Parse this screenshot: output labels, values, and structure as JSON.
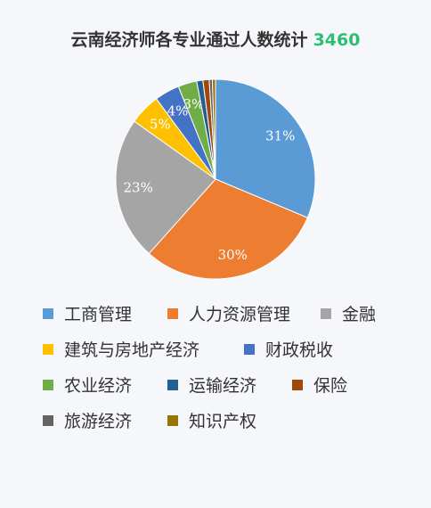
{
  "chart": {
    "title": "云南经济师各专业通过人数统计",
    "total": "3460"
  },
  "chart_data": {
    "type": "pie",
    "title": "云南经济师各专业通过人数统计 3460",
    "legend": "bottom",
    "categories": [
      "工商管理",
      "人力资源管理",
      "金融",
      "建筑与房地产经济",
      "财政税收",
      "农业经济",
      "运输经济",
      "保险",
      "旅游经济",
      "知识产权"
    ],
    "values": [
      31,
      30,
      23,
      5,
      4,
      3,
      1,
      1,
      0.5,
      0.5
    ],
    "labels": [
      "31%",
      "30%",
      "23%",
      "5%",
      "4%",
      "3%",
      "",
      "",
      "",
      ""
    ],
    "colors": [
      "#5b9bd5",
      "#ed7d31",
      "#a5a5a5",
      "#ffc000",
      "#4472c4",
      "#70ad47",
      "#255e91",
      "#9e480e",
      "#636363",
      "#997300"
    ]
  }
}
